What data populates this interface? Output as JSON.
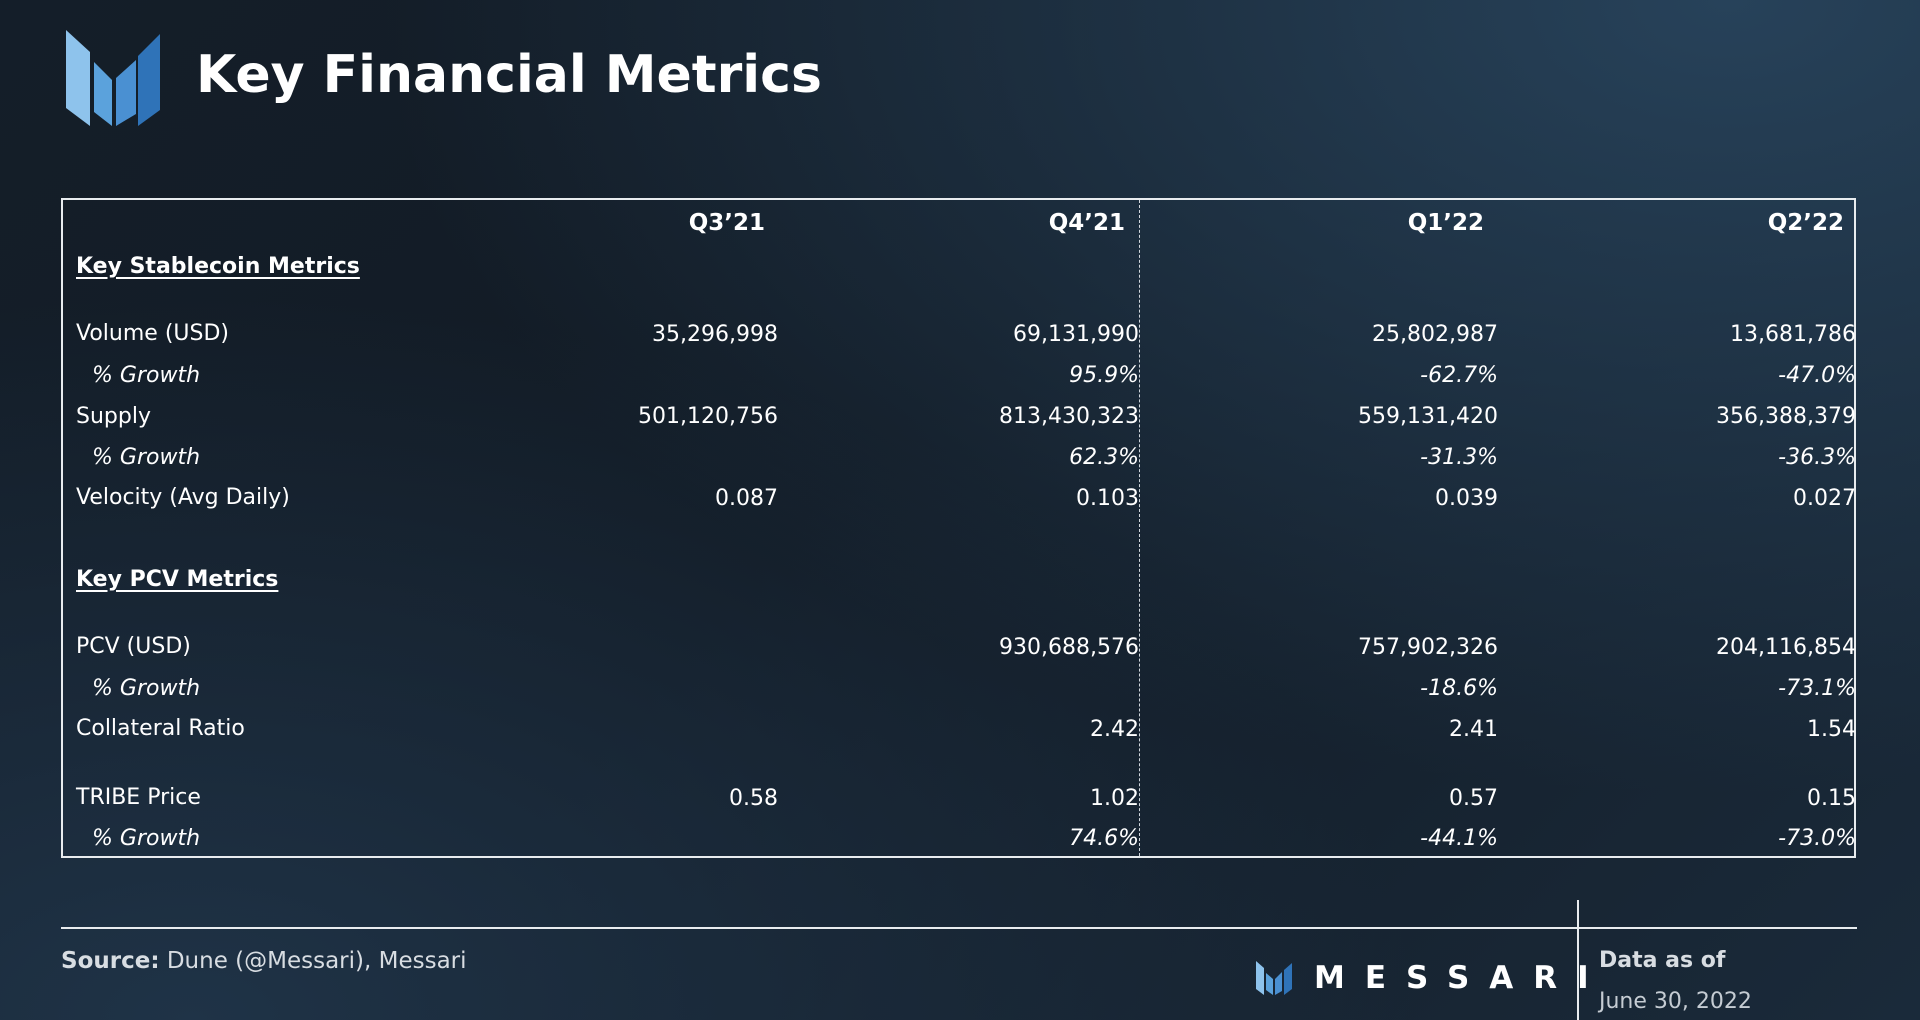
{
  "title": "Key Financial Metrics",
  "columns": [
    "Q3’21",
    "Q4’21",
    "Q1’22",
    "Q2’22"
  ],
  "sections": {
    "stablecoin": "Key Stablecoin Metrics",
    "pcv": "Key PCV Metrics"
  },
  "rows": {
    "volume": {
      "label": "Volume (USD)",
      "values": [
        "35,296,998",
        "69,131,990",
        "25,802,987",
        "13,681,786"
      ]
    },
    "volume_growth": {
      "label": "% Growth",
      "values": [
        "",
        "95.9%",
        "-62.7%",
        "-47.0%"
      ]
    },
    "supply": {
      "label": "Supply",
      "values": [
        "501,120,756",
        "813,430,323",
        "559,131,420",
        "356,388,379"
      ]
    },
    "supply_growth": {
      "label": "% Growth",
      "values": [
        "",
        "62.3%",
        "-31.3%",
        "-36.3%"
      ]
    },
    "velocity": {
      "label": "Velocity (Avg Daily)",
      "values": [
        "0.087",
        "0.103",
        "0.039",
        "0.027"
      ]
    },
    "pcv": {
      "label": "PCV (USD)",
      "values": [
        "",
        "930,688,576",
        "757,902,326",
        "204,116,854"
      ]
    },
    "pcv_growth": {
      "label": "% Growth",
      "values": [
        "",
        "",
        "-18.6%",
        "-73.1%"
      ]
    },
    "collateral": {
      "label": "Collateral Ratio",
      "values": [
        "",
        "2.42",
        "2.41",
        "1.54"
      ]
    },
    "tribe": {
      "label": "TRIBE Price",
      "values": [
        "0.58",
        "1.02",
        "0.57",
        "0.15"
      ]
    },
    "tribe_growth": {
      "label": "% Growth",
      "values": [
        "",
        "74.6%",
        "-44.1%",
        "-73.0%"
      ]
    }
  },
  "footer": {
    "source_label": "Source:",
    "source_text": " Dune (@Messari), Messari",
    "brand": "MESSARI",
    "asof_label": "Data as of",
    "asof_date": "June 30, 2022"
  },
  "colors": {
    "logo_light": "#8ec3ec",
    "logo_mid": "#5ba2dc",
    "logo_dark": "#2f73b8",
    "frame": "#e8ecef"
  },
  "icons": {
    "logo": "messari-logo-icon",
    "brand": "messari-brand-icon"
  }
}
